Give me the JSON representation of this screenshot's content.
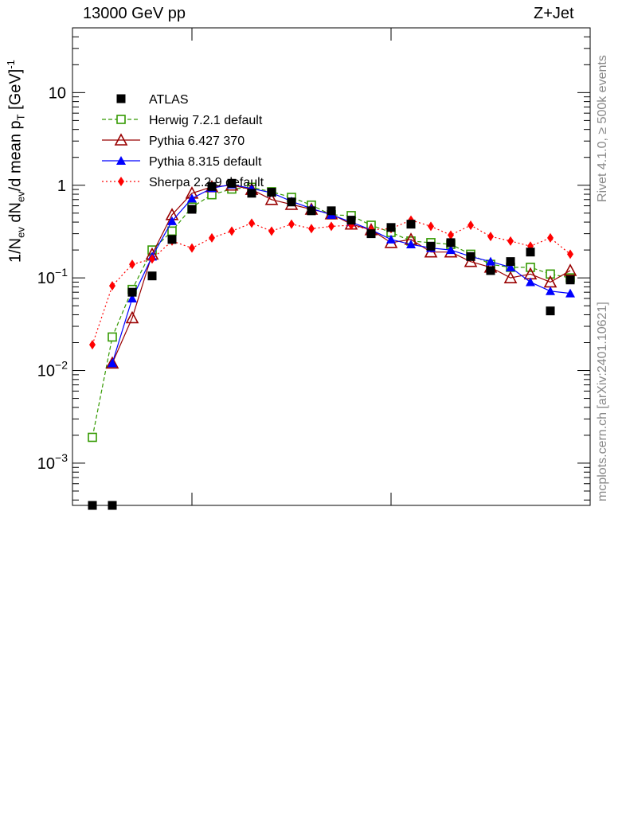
{
  "header": {
    "left": "13000 GeV pp",
    "right": "Z+Jet"
  },
  "side_labels": {
    "rivet": "Rivet 4.1.0, ≥ 500k events",
    "mcplots": "mcplots.cern.ch [arXiv:2401.10621]"
  },
  "ylabel": {
    "p1": "1/N",
    "sub1": "ev",
    "p2": " dN",
    "sub2": "ev",
    "p3": "/d mean p",
    "sub3": "T",
    "p4": " [GeV]",
    "sup": "-1"
  },
  "chart_data": {
    "type": "scatter",
    "title": "13000 GeV pp  Z+Jet",
    "xlabel": "",
    "ylabel": "1/N_ev dN_ev/d mean p_T [GeV]^-1",
    "yscale": "log",
    "ylim": [
      0.00035,
      50
    ],
    "xlim": [
      0,
      26
    ],
    "yticks": [
      {
        "value": 0.001,
        "base": "10",
        "exp": "−3"
      },
      {
        "value": 0.01,
        "base": "10",
        "exp": "−2"
      },
      {
        "value": 0.1,
        "base": "10",
        "exp": "−1"
      },
      {
        "value": 1,
        "base": "1",
        "exp": ""
      },
      {
        "value": 10,
        "base": "10",
        "exp": ""
      }
    ],
    "x_major_ticks": [
      6,
      16
    ],
    "legend_position": "upper-left",
    "series": [
      {
        "name": "ATLAS",
        "style": "data",
        "color": "#000000",
        "marker": "square-filled",
        "x": [
          1,
          2,
          3,
          4,
          5,
          6,
          7,
          8,
          9,
          10,
          11,
          12,
          13,
          14,
          15,
          16,
          17,
          18,
          19,
          20,
          21,
          22,
          23,
          24,
          25
        ],
        "values": [
          0.00035,
          0.00035,
          0.07,
          0.105,
          0.26,
          0.55,
          0.97,
          1.05,
          0.82,
          0.84,
          0.66,
          0.53,
          0.53,
          0.42,
          0.3,
          0.35,
          0.38,
          0.22,
          0.24,
          0.17,
          0.12,
          0.15,
          0.19,
          0.044,
          0.095
        ]
      },
      {
        "name": "Herwig 7.2.1 default",
        "style": "dashed",
        "color": "#339900",
        "marker": "square-open",
        "x": [
          1,
          2,
          3,
          4,
          5,
          6,
          7,
          8,
          9,
          10,
          11,
          12,
          13,
          14,
          15,
          16,
          17,
          18,
          19,
          20,
          21,
          22,
          23,
          24,
          25
        ],
        "values": [
          0.0019,
          0.023,
          0.075,
          0.2,
          0.32,
          0.58,
          0.79,
          0.91,
          0.95,
          0.85,
          0.74,
          0.61,
          0.48,
          0.47,
          0.37,
          0.31,
          0.25,
          0.24,
          0.23,
          0.18,
          0.14,
          0.13,
          0.13,
          0.11,
          0.1
        ]
      },
      {
        "name": "Pythia 6.427 370",
        "style": "solid",
        "color": "#990000",
        "marker": "triangle-open",
        "x": [
          1,
          2,
          3,
          4,
          5,
          6,
          7,
          8,
          9,
          10,
          11,
          12,
          13,
          14,
          15,
          16,
          17,
          18,
          19,
          20,
          21,
          22,
          23,
          24,
          25
        ],
        "values": [
          null,
          0.012,
          0.037,
          0.18,
          0.48,
          0.82,
          0.96,
          1.0,
          0.9,
          0.7,
          0.62,
          0.55,
          0.49,
          0.38,
          0.33,
          0.24,
          0.26,
          0.19,
          0.19,
          0.15,
          0.13,
          0.1,
          0.11,
          0.09,
          0.12
        ]
      },
      {
        "name": "Pythia 8.315 default",
        "style": "solid",
        "color": "#0000ff",
        "marker": "triangle-filled",
        "x": [
          1,
          2,
          3,
          4,
          5,
          6,
          7,
          8,
          9,
          10,
          11,
          12,
          13,
          14,
          15,
          16,
          17,
          18,
          19,
          20,
          21,
          22,
          23,
          24,
          25
        ],
        "values": [
          null,
          0.012,
          0.06,
          0.17,
          0.41,
          0.72,
          0.93,
          1.02,
          0.92,
          0.83,
          0.67,
          0.56,
          0.48,
          0.4,
          0.33,
          0.26,
          0.23,
          0.21,
          0.2,
          0.17,
          0.15,
          0.13,
          0.09,
          0.072,
          0.068
        ]
      },
      {
        "name": "Sherpa 2.2.9 default",
        "style": "dotted",
        "color": "#ff0000",
        "marker": "diamond-filled",
        "x": [
          1,
          2,
          3,
          4,
          5,
          6,
          7,
          8,
          9,
          10,
          11,
          12,
          13,
          14,
          15,
          16,
          17,
          18,
          19,
          20,
          21,
          22,
          23,
          24,
          25
        ],
        "values": [
          0.019,
          0.082,
          0.14,
          0.16,
          0.25,
          0.21,
          0.27,
          0.32,
          0.39,
          0.32,
          0.38,
          0.34,
          0.36,
          0.37,
          0.33,
          0.34,
          0.42,
          0.36,
          0.29,
          0.37,
          0.28,
          0.25,
          0.22,
          0.27,
          0.18
        ]
      }
    ]
  }
}
